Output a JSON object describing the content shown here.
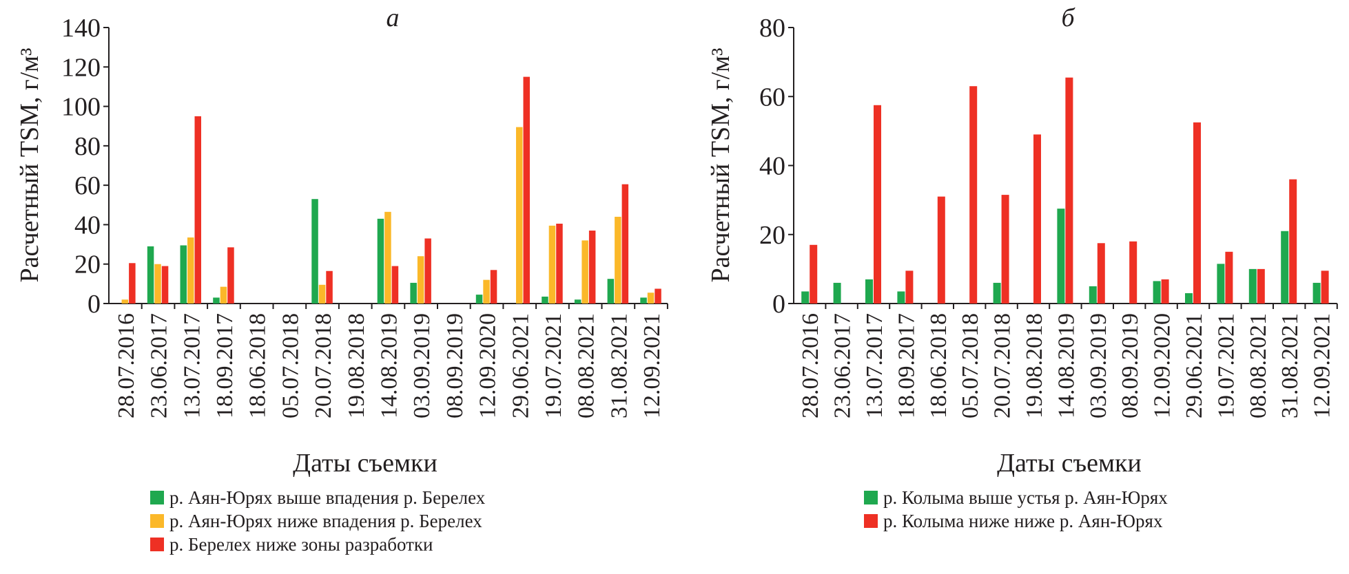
{
  "chart_data": [
    {
      "type": "bar",
      "title": "а",
      "ylabel": "Расчетный TSM, г/м³",
      "xlabel": "Даты съемки",
      "ylim": [
        0,
        140
      ],
      "yticks": [
        "0",
        "20",
        "40",
        "60",
        "80",
        "100",
        "120",
        "140"
      ],
      "categories": [
        "28.07.2016",
        "23.06.2017",
        "13.07.2017",
        "18.09.2017",
        "18.06.2018",
        "05.07.2018",
        "20.07.2018",
        "19.08.2018",
        "14.08.2019",
        "03.09.2019",
        "08.09.2019",
        "12.09.2020",
        "29.06.2021",
        "19.07.2021",
        "08.08.2021",
        "31.08.2021",
        "12.09.2021"
      ],
      "series": [
        {
          "name": "р. Аян-Юрях выше впадения р. Берелех",
          "color": "#1fa84f",
          "values": [
            0,
            29,
            29.5,
            3,
            0,
            0,
            53,
            0,
            43,
            10.5,
            0,
            4.5,
            0,
            3.5,
            2,
            12.5,
            3
          ]
        },
        {
          "name": "р. Аян-Юрях ниже впадения р. Берелех",
          "color": "#fbb829",
          "values": [
            2,
            20,
            33.5,
            8.5,
            0,
            0,
            9.5,
            0,
            46.5,
            24,
            0,
            12,
            89.5,
            39.5,
            32,
            44,
            5.5
          ]
        },
        {
          "name": "р. Берелех ниже зоны разработки",
          "color": "#ee3024",
          "values": [
            20.5,
            19,
            95,
            28.5,
            0,
            0,
            16.5,
            0,
            19,
            33,
            0,
            17,
            115,
            40.5,
            37,
            60.5,
            7.5
          ]
        }
      ]
    },
    {
      "type": "bar",
      "title": "б",
      "ylabel": "Расчетный TSM, г/м³",
      "xlabel": "Даты съемки",
      "ylim": [
        0,
        80
      ],
      "yticks": [
        "0",
        "20",
        "40",
        "60",
        "80"
      ],
      "categories": [
        "28.07.2016",
        "23.06.2017",
        "13.07.2017",
        "18.09.2017",
        "18.06.2018",
        "05.07.2018",
        "20.07.2018",
        "19.08.2018",
        "14.08.2019",
        "03.09.2019",
        "08.09.2019",
        "12.09.2020",
        "29.06.2021",
        "19.07.2021",
        "08.08.2021",
        "31.08.2021",
        "12.09.2021"
      ],
      "series": [
        {
          "name": "р. Колыма выше устья р. Аян-Юрях",
          "color": "#1fa84f",
          "values": [
            3.5,
            6,
            7,
            3.5,
            0,
            0,
            6,
            0,
            27.5,
            5,
            0,
            6.5,
            3,
            11.5,
            10,
            21,
            6
          ]
        },
        {
          "name": "р. Колыма ниже ниже р. Аян-Юрях",
          "color": "#ee3024",
          "values": [
            17,
            0,
            57.5,
            9.5,
            31,
            63,
            31.5,
            49,
            65.5,
            17.5,
            18,
            7,
            52.5,
            15,
            10,
            36,
            9.5
          ]
        }
      ]
    }
  ]
}
